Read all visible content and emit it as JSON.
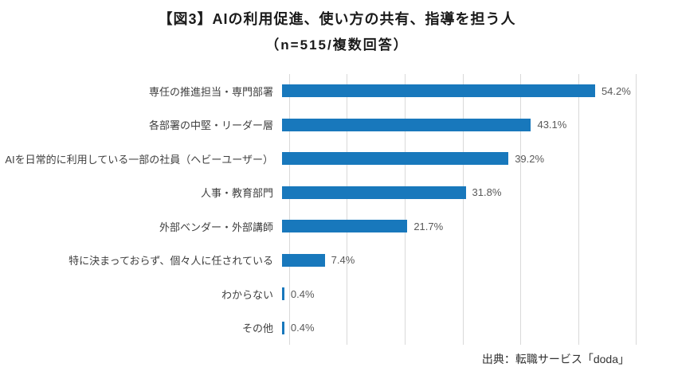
{
  "title": "【図3】AIの利用促進、使い方の共有、指導を担う人",
  "subtitle": "（n=515/複数回答）",
  "source": "出典：転職サービス「doda」",
  "colors": {
    "bar": "#1878BC",
    "gridline": "#d9d9d9",
    "category_text": "#404040",
    "value_text": "#595959"
  },
  "chart_data": {
    "type": "bar",
    "orientation": "horizontal",
    "title": "【図3】AIの利用促進、使い方の共有、指導を担う人",
    "subtitle": "（n=515/複数回答）",
    "categories": [
      "専任の推進担当・専門部署",
      "各部署の中堅・リーダー層",
      "AIを日常的に利用している一部の社員（ヘビーユーザー）",
      "人事・教育部門",
      "外部ベンダー・外部講師",
      "特に決まっておらず、個々人に任されている",
      "わからない",
      "その他"
    ],
    "values": [
      54.2,
      43.1,
      39.2,
      31.8,
      21.7,
      7.4,
      0.4,
      0.4
    ],
    "value_labels": [
      "54.2%",
      "43.1%",
      "39.2%",
      "31.8%",
      "21.7%",
      "7.4%",
      "0.4%",
      "0.4%"
    ],
    "unit": "%",
    "xlim": [
      0,
      60
    ],
    "gridline_interval": 10,
    "grid": true,
    "legend": false,
    "bar_color": "#1878BC"
  }
}
